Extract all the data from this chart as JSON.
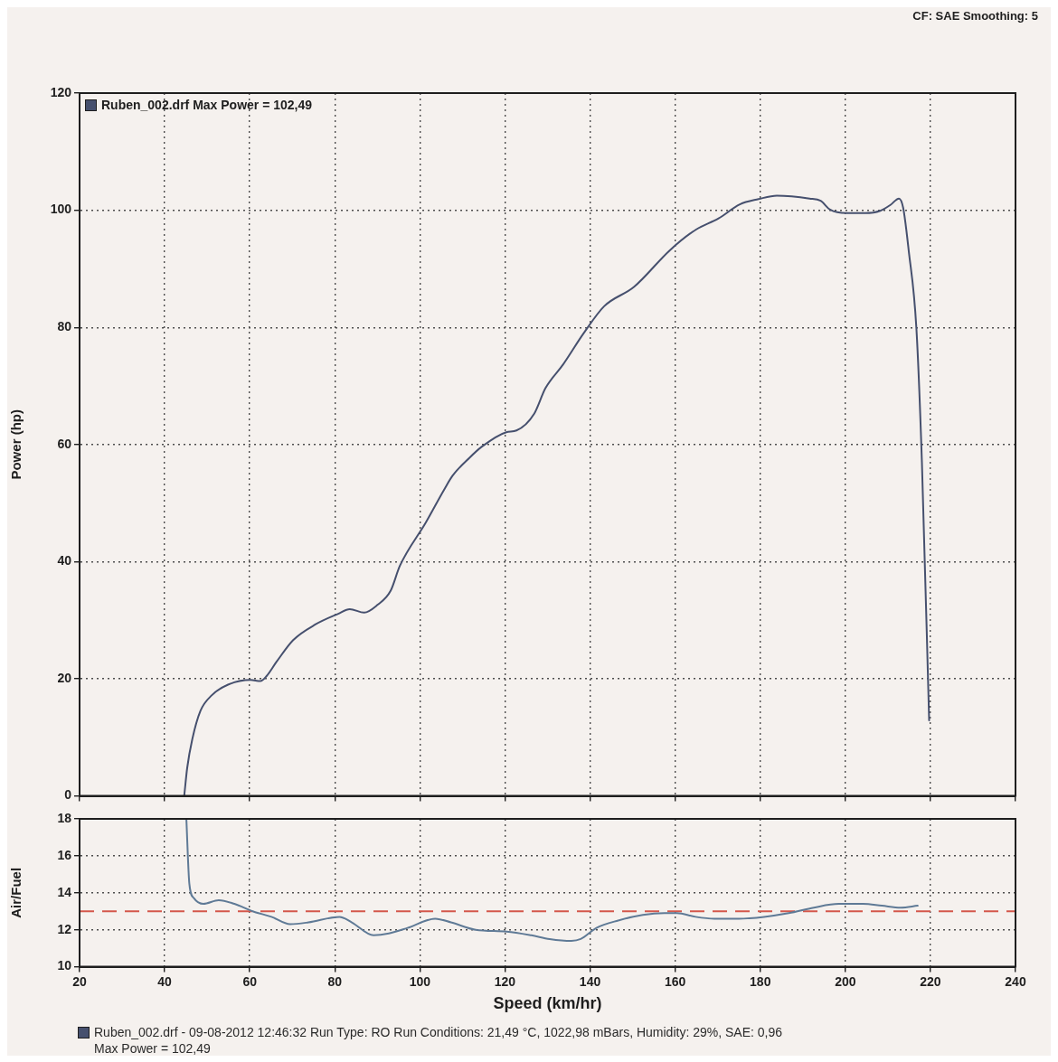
{
  "chart_data": [
    {
      "type": "line",
      "ylabel": "Power (hp)",
      "annotations": [
        "CF: SAE Smoothing: 5"
      ],
      "x": [
        44.6,
        45.3,
        46.5,
        48.4,
        51.1,
        54.9,
        60.2,
        62.5,
        64.0,
        66.3,
        70.2,
        75.5,
        80.8,
        83.5,
        86.9,
        90.0,
        93.1,
        95.3,
        101.4,
        105.7,
        107.7,
        111.6,
        114.5,
        120.3,
        122.7,
        126.9,
        129.5,
        133.6,
        138.5,
        143.3,
        150.3,
        158.8,
        164.9,
        170.2,
        175.2,
        179.6,
        183.9,
        191.6,
        194.2,
        196.4,
        200.3,
        204.7,
        208.2,
        210.6,
        212.6,
        213.6,
        214.9,
        216.7,
        218.0,
        219.7
      ],
      "series": [
        {
          "name": "Ruben_002.drf Max Power = 102,49",
          "color": "#46506e",
          "values": [
            0,
            4.8,
            9.7,
            14.5,
            17.2,
            19.0,
            19.8,
            19.6,
            20.5,
            22.9,
            26.6,
            29.3,
            31.1,
            31.9,
            31.3,
            32.6,
            35.0,
            39.3,
            46.7,
            52.3,
            54.7,
            57.7,
            59.6,
            62.1,
            62.4,
            65.3,
            69.6,
            73.6,
            79.0,
            83.6,
            86.9,
            93.2,
            96.7,
            98.6,
            101.0,
            101.9,
            102.5,
            102.0,
            101.6,
            100.1,
            99.5,
            99.5,
            99.9,
            100.9,
            102.0,
            100.4,
            93.1,
            79.9,
            57.0,
            12.9
          ]
        }
      ],
      "xlim": [
        20,
        240
      ],
      "xticks": [
        20,
        40,
        60,
        80,
        100,
        120,
        140,
        160,
        180,
        200,
        220,
        240
      ],
      "ylim": [
        0,
        120
      ],
      "yticks": [
        0,
        20,
        40,
        60,
        80,
        100,
        120
      ],
      "grid": true,
      "legend": "top left",
      "tick_labels": "y",
      "marker": "none"
    },
    {
      "type": "line",
      "xlabel": "Speed (km/hr)",
      "ylabel": "Air/Fuel",
      "annotations": [
        "Ruben_002.drf - 09-08-2012 12:46:32 Run Type: RO Run Conditions: 21,49 °C, 1022,98 mBars, Humidity: 29%, SAE: 0,96",
        "Max Power = 102,49"
      ],
      "x": [
        45.1,
        45.8,
        46.9,
        49.1,
        52.7,
        56.4,
        60.7,
        65.1,
        69.5,
        73.8,
        81.1,
        84.0,
        89.1,
        92.7,
        97.1,
        103.6,
        107.3,
        113.1,
        120.4,
        126.2,
        130.5,
        135.6,
        137.8,
        141.5,
        146.6,
        152.4,
        157.5,
        160.4,
        164.8,
        169.2,
        175.0,
        180.9,
        186.7,
        192.6,
        198.4,
        204.2,
        208.6,
        213.0,
        217.0
      ],
      "series": [
        {
          "color": "#5f7a96",
          "values": [
            18,
            14.5,
            13.7,
            13.4,
            13.6,
            13.4,
            13.0,
            12.7,
            12.3,
            12.4,
            12.7,
            12.4,
            11.7,
            11.8,
            12.1,
            12.6,
            12.4,
            12.0,
            11.9,
            11.7,
            11.5,
            11.4,
            11.5,
            12.1,
            12.5,
            12.8,
            12.9,
            12.9,
            12.7,
            12.6,
            12.6,
            12.7,
            12.9,
            13.2,
            13.4,
            13.4,
            13.3,
            13.2,
            13.3
          ]
        }
      ],
      "xlim": [
        20,
        240
      ],
      "xticks": [
        20,
        40,
        60,
        80,
        100,
        120,
        140,
        160,
        180,
        200,
        220,
        240
      ],
      "ylim": [
        10,
        18
      ],
      "yticks": [
        10,
        12,
        14,
        16,
        18
      ],
      "grid": true,
      "marker": "none",
      "ref_lines": [
        {
          "axis": "y",
          "value": 13,
          "color": "#d4574b",
          "line_style": "dashed"
        }
      ]
    }
  ]
}
